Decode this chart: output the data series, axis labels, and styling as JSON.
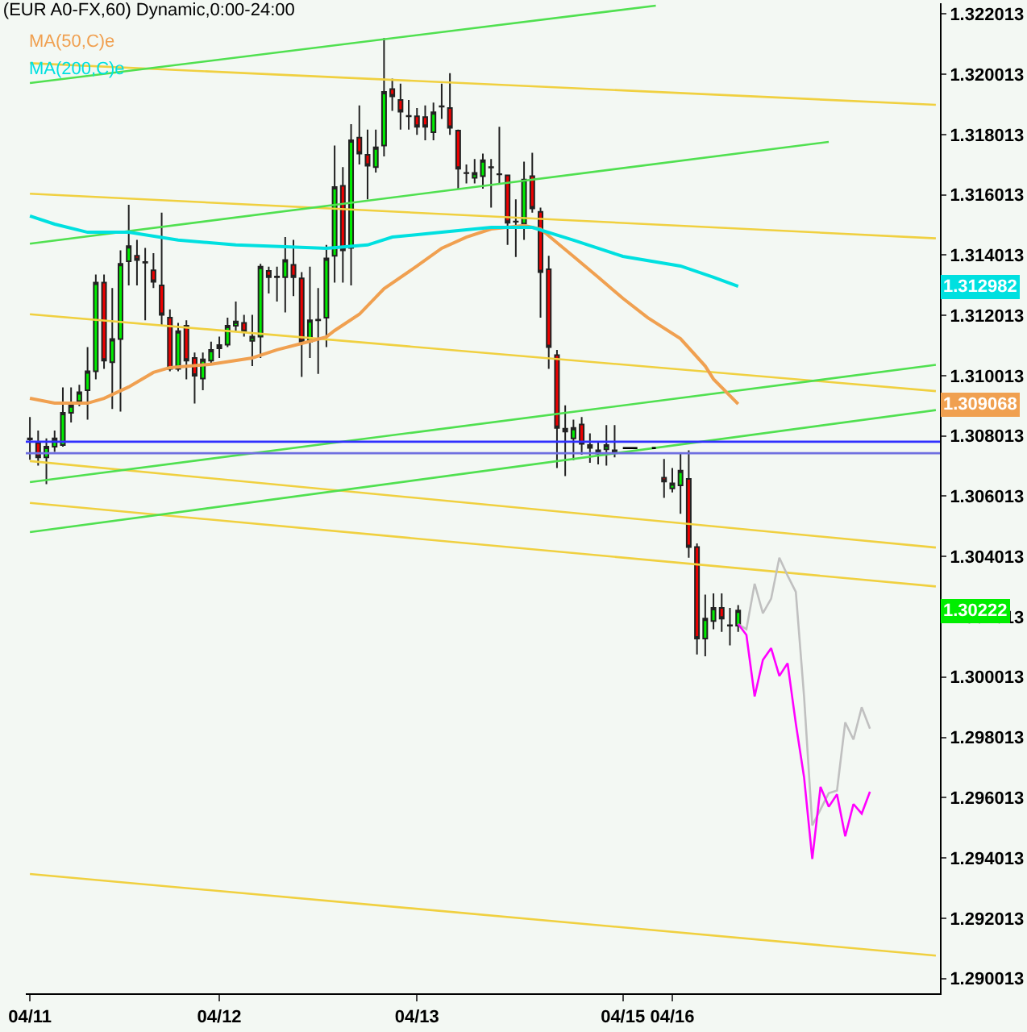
{
  "chart_data": {
    "type": "candlestick",
    "title": "(EUR A0-FX,60) Dynamic,0:00-24:00",
    "categories": [
      "04/11",
      null,
      null,
      null,
      null,
      null,
      null,
      null,
      null,
      null,
      null,
      null,
      null,
      null,
      null,
      null,
      null,
      null,
      null,
      null,
      null,
      null,
      null,
      "04/12",
      null,
      null,
      null,
      null,
      null,
      null,
      null,
      null,
      null,
      null,
      null,
      null,
      null,
      null,
      null,
      null,
      null,
      null,
      null,
      null,
      null,
      null,
      null,
      "04/13",
      null,
      null,
      null,
      null,
      null,
      null,
      null,
      null,
      null,
      null,
      null,
      null,
      null,
      null,
      null,
      null,
      null,
      null,
      null,
      null,
      null,
      null,
      null,
      null,
      "04/15",
      null,
      null,
      null,
      null,
      null,
      "04/16",
      null,
      null,
      null,
      null,
      null,
      null,
      null,
      null,
      null,
      null,
      null,
      null,
      null,
      null,
      null,
      null,
      null,
      null,
      null,
      null,
      null,
      null,
      null,
      null,
      null,
      null,
      null,
      null,
      null,
      null,
      null,
      null
    ],
    "ohlc": [
      [
        1.30793,
        1.30864,
        1.30722,
        1.3079
      ],
      [
        1.30778,
        1.30819,
        1.30703,
        1.3073
      ],
      [
        1.3073,
        1.30793,
        1.30641,
        1.30766
      ],
      [
        1.30766,
        1.30819,
        1.30748,
        1.30793
      ],
      [
        1.30771,
        1.30962,
        1.30766,
        1.30878
      ],
      [
        1.30878,
        1.30962,
        1.30846,
        1.30903
      ],
      [
        1.30917,
        1.30971,
        1.309,
        1.30946
      ],
      [
        1.30953,
        1.31096,
        1.30855,
        1.31016
      ],
      [
        1.31016,
        1.31337,
        1.30989,
        1.3131
      ],
      [
        1.3131,
        1.31337,
        1.31024,
        1.31051
      ],
      [
        1.31046,
        1.31292,
        1.30891,
        1.31123
      ],
      [
        1.31123,
        1.31417,
        1.30882,
        1.31372
      ],
      [
        1.31381,
        1.31568,
        1.31301,
        1.31431
      ],
      [
        1.31399,
        1.31452,
        1.31301,
        1.31385
      ],
      [
        1.31378,
        1.31425,
        1.31185,
        1.31376
      ],
      [
        1.31351,
        1.31408,
        1.31292,
        1.31313
      ],
      [
        1.31301,
        1.31542,
        1.31167,
        1.31203
      ],
      [
        1.31194,
        1.31221,
        1.31016,
        1.31024
      ],
      [
        1.31024,
        1.31176,
        1.31016,
        1.31149
      ],
      [
        1.31167,
        1.31185,
        1.30989,
        1.31051
      ],
      [
        1.3106,
        1.31078,
        1.30909,
        1.31001
      ],
      [
        1.30992,
        1.31078,
        1.30953,
        1.31055
      ],
      [
        1.31051,
        1.31114,
        1.31042,
        1.31087
      ],
      [
        1.31092,
        1.31131,
        1.3106,
        1.31103
      ],
      [
        1.31104,
        1.31194,
        1.31096,
        1.31167
      ],
      [
        1.31167,
        1.31247,
        1.31149,
        1.31181
      ],
      [
        1.31176,
        1.31203,
        1.31131,
        1.31146
      ],
      [
        1.31117,
        1.31203,
        1.31033,
        1.31131
      ],
      [
        1.31131,
        1.31372,
        1.3106,
        1.31363
      ],
      [
        1.31349,
        1.31363,
        1.31274,
        1.31328
      ],
      [
        1.3133,
        1.31363,
        1.31247,
        1.31328
      ],
      [
        1.31328,
        1.31461,
        1.31211,
        1.31385
      ],
      [
        1.31369,
        1.31452,
        1.31265,
        1.31328
      ],
      [
        1.31324,
        1.31345,
        1.30997,
        1.31114
      ],
      [
        1.31114,
        1.31363,
        1.3106,
        1.31185
      ],
      [
        1.31185,
        1.31292,
        1.31007,
        1.31187
      ],
      [
        1.31194,
        1.31435,
        1.31096,
        1.3139
      ],
      [
        1.31399,
        1.31765,
        1.3131,
        1.31627
      ],
      [
        1.31631,
        1.31693,
        1.3131,
        1.31417
      ],
      [
        1.31425,
        1.31836,
        1.31301,
        1.31782
      ],
      [
        1.31791,
        1.31898,
        1.31702,
        1.31738
      ],
      [
        1.31734,
        1.31818,
        1.31586,
        1.31698
      ],
      [
        1.31693,
        1.31818,
        1.31675,
        1.31759
      ],
      [
        1.31765,
        1.32121,
        1.31729,
        1.31943
      ],
      [
        1.31952,
        1.31987,
        1.3188,
        1.31928
      ],
      [
        1.31916,
        1.3197,
        1.31818,
        1.31877
      ],
      [
        1.31863,
        1.31916,
        1.31818,
        1.31862
      ],
      [
        1.31862,
        1.31889,
        1.318,
        1.31827
      ],
      [
        1.31859,
        1.31898,
        1.31782,
        1.31827
      ],
      [
        1.31809,
        1.31907,
        1.31782,
        1.31875
      ],
      [
        1.31895,
        1.3197,
        1.31853,
        1.31894
      ],
      [
        1.31889,
        1.32005,
        1.318,
        1.31824
      ],
      [
        1.31814,
        1.31818,
        1.31622,
        1.31688
      ],
      [
        1.31674,
        1.31702,
        1.31639,
        1.31673
      ],
      [
        1.31658,
        1.3172,
        1.31639,
        1.31674
      ],
      [
        1.31663,
        1.31738,
        1.31622,
        1.31716
      ],
      [
        1.31693,
        1.3172,
        1.31559,
        1.31692
      ],
      [
        1.3167,
        1.31827,
        1.31639,
        1.31669
      ],
      [
        1.31666,
        1.31666,
        1.31435,
        1.31509
      ],
      [
        1.31513,
        1.31586,
        1.31395,
        1.31512
      ],
      [
        1.31506,
        1.31711,
        1.31452,
        1.31652
      ],
      [
        1.31663,
        1.31741,
        1.31542,
        1.31556
      ],
      [
        1.31545,
        1.31559,
        1.31194,
        1.31345
      ],
      [
        1.31354,
        1.31399,
        1.31024,
        1.31096
      ],
      [
        1.31069,
        1.31087,
        1.30695,
        1.30828
      ],
      [
        1.30825,
        1.30903,
        1.30668,
        1.30816
      ],
      [
        1.30793,
        1.30855,
        1.30721,
        1.30828
      ],
      [
        1.30839,
        1.30864,
        1.30739,
        1.30775
      ],
      [
        1.30771,
        1.3081,
        1.30712,
        1.30762
      ],
      [
        1.30743,
        1.30783,
        1.30707,
        1.30754
      ],
      [
        1.30757,
        1.30837,
        1.30703,
        1.30771
      ],
      [
        1.30744,
        1.30837,
        1.3073,
        1.30754
      ],
      null,
      null,
      null,
      null,
      null,
      [
        1.30663,
        1.30725,
        1.30596,
        1.3065
      ],
      [
        1.30627,
        1.30695,
        1.30614,
        1.30644
      ],
      [
        1.30637,
        1.30743,
        1.30543,
        1.30686
      ],
      [
        1.30659,
        1.30754,
        1.30397,
        1.30433
      ],
      [
        1.30433,
        1.30445,
        1.30076,
        1.30129
      ],
      [
        1.30129,
        1.30275,
        1.3007,
        1.30195
      ],
      [
        1.30187,
        1.30279,
        1.3016,
        1.30231
      ],
      [
        1.30231,
        1.30279,
        1.30151,
        1.30195
      ],
      [
        1.30173,
        1.30231,
        1.30106,
        1.30172
      ],
      [
        1.30172,
        1.3024,
        1.30151,
        1.30222
      ],
      null,
      null,
      null,
      null,
      null,
      null,
      null,
      null,
      null,
      null,
      null,
      null,
      null,
      null,
      null,
      null,
      null,
      null,
      null,
      null,
      null,
      null,
      null,
      null
    ],
    "series": [
      {
        "type": "line",
        "color": "#f0d040",
        "values": [
          1.32038,
          null,
          null,
          null,
          null,
          null,
          null,
          null,
          null,
          null,
          null,
          null,
          null,
          null,
          null,
          null,
          null,
          null,
          null,
          null,
          null,
          null,
          null,
          null,
          null,
          null,
          null,
          null,
          null,
          null,
          null,
          null,
          null,
          null,
          null,
          null,
          null,
          null,
          null,
          null,
          null,
          null,
          null,
          null,
          null,
          null,
          null,
          null,
          null,
          null,
          null,
          null,
          null,
          null,
          null,
          null,
          null,
          null,
          null,
          null,
          null,
          null,
          null,
          null,
          null,
          null,
          null,
          null,
          null,
          null,
          null,
          null,
          null,
          null,
          null,
          null,
          null,
          null,
          null,
          null,
          null,
          null,
          null,
          null,
          null,
          null,
          null,
          null,
          null,
          null,
          null,
          null,
          null,
          null,
          null,
          null,
          null,
          null,
          null,
          null,
          null,
          null,
          null,
          null,
          null,
          null,
          null,
          null,
          null,
          null,
          1.319
        ]
      },
      {
        "type": "line",
        "color": "#f0d040",
        "values": [
          1.31605,
          null,
          null,
          null,
          null,
          null,
          null,
          null,
          null,
          null,
          null,
          null,
          null,
          null,
          null,
          null,
          null,
          null,
          null,
          null,
          null,
          null,
          null,
          null,
          null,
          null,
          null,
          null,
          null,
          null,
          null,
          null,
          null,
          null,
          null,
          null,
          null,
          null,
          null,
          null,
          null,
          null,
          null,
          null,
          null,
          null,
          null,
          null,
          null,
          null,
          null,
          null,
          null,
          null,
          null,
          null,
          null,
          null,
          null,
          null,
          null,
          null,
          null,
          null,
          null,
          null,
          null,
          null,
          null,
          null,
          null,
          null,
          null,
          null,
          null,
          null,
          null,
          null,
          null,
          null,
          null,
          null,
          null,
          null,
          null,
          null,
          null,
          null,
          null,
          null,
          null,
          null,
          null,
          null,
          null,
          null,
          null,
          null,
          null,
          null,
          null,
          null,
          null,
          null,
          null,
          null,
          null,
          null,
          null,
          null,
          1.31457
        ]
      },
      {
        "type": "line",
        "color": "#f0d040",
        "values": [
          1.31205,
          null,
          null,
          null,
          null,
          null,
          null,
          null,
          null,
          null,
          null,
          null,
          null,
          null,
          null,
          null,
          null,
          null,
          null,
          null,
          null,
          null,
          null,
          null,
          null,
          null,
          null,
          null,
          null,
          null,
          null,
          null,
          null,
          null,
          null,
          null,
          null,
          null,
          null,
          null,
          null,
          null,
          null,
          null,
          null,
          null,
          null,
          null,
          null,
          null,
          null,
          null,
          null,
          null,
          null,
          null,
          null,
          null,
          null,
          null,
          null,
          null,
          null,
          null,
          null,
          null,
          null,
          null,
          null,
          null,
          null,
          null,
          null,
          null,
          null,
          null,
          null,
          null,
          null,
          null,
          null,
          null,
          null,
          null,
          null,
          null,
          null,
          null,
          null,
          null,
          null,
          null,
          null,
          null,
          null,
          null,
          null,
          null,
          null,
          null,
          null,
          null,
          null,
          null,
          null,
          null,
          null,
          null,
          null,
          null,
          1.3095
        ]
      },
      {
        "type": "line",
        "color": "#f0d040",
        "values": [
          1.30718,
          null,
          null,
          null,
          null,
          null,
          null,
          null,
          null,
          null,
          null,
          null,
          null,
          null,
          null,
          null,
          null,
          null,
          null,
          null,
          null,
          null,
          null,
          null,
          null,
          null,
          null,
          null,
          null,
          null,
          null,
          null,
          null,
          null,
          null,
          null,
          null,
          null,
          null,
          null,
          null,
          null,
          null,
          null,
          null,
          null,
          null,
          null,
          null,
          null,
          null,
          null,
          null,
          null,
          null,
          null,
          null,
          null,
          null,
          null,
          null,
          null,
          null,
          null,
          null,
          null,
          null,
          null,
          null,
          null,
          null,
          null,
          null,
          null,
          null,
          null,
          null,
          null,
          null,
          null,
          null,
          null,
          null,
          null,
          null,
          null,
          null,
          null,
          null,
          null,
          null,
          null,
          null,
          null,
          null,
          null,
          null,
          null,
          null,
          null,
          null,
          null,
          null,
          null,
          null,
          null,
          null,
          null,
          null,
          null,
          1.30431
        ]
      },
      {
        "type": "line",
        "color": "#f0d040",
        "values": [
          1.30579,
          null,
          null,
          null,
          null,
          null,
          null,
          null,
          null,
          null,
          null,
          null,
          null,
          null,
          null,
          null,
          null,
          null,
          null,
          null,
          null,
          null,
          null,
          null,
          null,
          null,
          null,
          null,
          null,
          null,
          null,
          null,
          null,
          null,
          null,
          null,
          null,
          null,
          null,
          null,
          null,
          null,
          null,
          null,
          null,
          null,
          null,
          null,
          null,
          null,
          null,
          null,
          null,
          null,
          null,
          null,
          null,
          null,
          null,
          null,
          null,
          null,
          null,
          null,
          null,
          null,
          null,
          null,
          null,
          null,
          null,
          null,
          null,
          null,
          null,
          null,
          null,
          null,
          null,
          null,
          null,
          null,
          null,
          null,
          null,
          null,
          null,
          null,
          null,
          null,
          null,
          null,
          null,
          null,
          null,
          null,
          null,
          null,
          null,
          null,
          null,
          null,
          null,
          null,
          null,
          null,
          null,
          null,
          null,
          null,
          1.30302
        ]
      },
      {
        "type": "line",
        "color": "#f0d040",
        "values": [
          1.29348,
          null,
          null,
          null,
          null,
          null,
          null,
          null,
          null,
          null,
          null,
          null,
          null,
          null,
          null,
          null,
          null,
          null,
          null,
          null,
          null,
          null,
          null,
          null,
          null,
          null,
          null,
          null,
          null,
          null,
          null,
          null,
          null,
          null,
          null,
          null,
          null,
          null,
          null,
          null,
          null,
          null,
          null,
          null,
          null,
          null,
          null,
          null,
          null,
          null,
          null,
          null,
          null,
          null,
          null,
          null,
          null,
          null,
          null,
          null,
          null,
          null,
          null,
          null,
          null,
          null,
          null,
          null,
          null,
          null,
          null,
          null,
          null,
          null,
          null,
          null,
          null,
          null,
          null,
          null,
          null,
          null,
          null,
          null,
          null,
          null,
          null,
          null,
          null,
          null,
          null,
          null,
          null,
          null,
          null,
          null,
          null,
          null,
          null,
          null,
          null,
          null,
          null,
          null,
          null,
          null,
          null,
          null,
          null,
          null,
          1.29077
        ]
      },
      {
        "type": "line",
        "color": "#50e050",
        "values": [
          1.31972,
          null,
          null,
          null,
          null,
          null,
          null,
          null,
          null,
          null,
          null,
          null,
          null,
          null,
          null,
          null,
          null,
          null,
          null,
          null,
          null,
          null,
          null,
          null,
          null,
          null,
          null,
          null,
          null,
          null,
          null,
          null,
          null,
          null,
          null,
          null,
          null,
          null,
          null,
          null,
          null,
          null,
          null,
          null,
          null,
          null,
          null,
          null,
          null,
          null,
          null,
          null,
          null,
          null,
          null,
          null,
          null,
          null,
          null,
          null,
          null,
          null,
          null,
          null,
          null,
          null,
          null,
          null,
          null,
          null,
          null,
          null,
          null,
          null,
          null,
          null,
          1.32229,
          null,
          null,
          null,
          null,
          null,
          null,
          null,
          null,
          null,
          null,
          null,
          null,
          null,
          null,
          null,
          null,
          null,
          null,
          null,
          null,
          null,
          null,
          null,
          null,
          null,
          null,
          null,
          null,
          null,
          null,
          null,
          null,
          null,
          null
        ]
      },
      {
        "type": "line",
        "color": "#50e050",
        "values": [
          1.31439,
          null,
          null,
          null,
          null,
          null,
          null,
          null,
          null,
          null,
          null,
          null,
          null,
          null,
          null,
          null,
          null,
          null,
          null,
          null,
          null,
          null,
          null,
          null,
          null,
          null,
          null,
          null,
          null,
          null,
          null,
          null,
          null,
          null,
          null,
          null,
          null,
          null,
          null,
          null,
          null,
          null,
          null,
          null,
          null,
          null,
          null,
          null,
          null,
          null,
          null,
          null,
          null,
          null,
          null,
          null,
          null,
          null,
          null,
          null,
          null,
          null,
          null,
          null,
          null,
          null,
          null,
          null,
          null,
          null,
          null,
          null,
          null,
          null,
          null,
          null,
          null,
          null,
          null,
          null,
          null,
          null,
          null,
          null,
          null,
          null,
          null,
          null,
          null,
          null,
          null,
          null,
          null,
          null,
          null,
          null,
          null,
          1.31777,
          null,
          null,
          null,
          null,
          null,
          null,
          null,
          null,
          null,
          null,
          null,
          null,
          null
        ]
      },
      {
        "type": "line",
        "color": "#50e050",
        "values": [
          1.30648,
          null,
          null,
          null,
          null,
          null,
          null,
          null,
          null,
          null,
          null,
          null,
          null,
          null,
          null,
          null,
          null,
          null,
          null,
          null,
          null,
          null,
          null,
          null,
          null,
          null,
          null,
          null,
          null,
          null,
          null,
          null,
          null,
          null,
          null,
          null,
          null,
          null,
          null,
          null,
          null,
          null,
          null,
          null,
          null,
          null,
          null,
          null,
          null,
          null,
          null,
          null,
          null,
          null,
          null,
          null,
          null,
          null,
          null,
          null,
          null,
          null,
          null,
          null,
          null,
          null,
          null,
          null,
          null,
          null,
          null,
          null,
          null,
          null,
          null,
          null,
          null,
          null,
          null,
          null,
          null,
          null,
          null,
          null,
          null,
          null,
          null,
          null,
          null,
          null,
          null,
          null,
          null,
          null,
          null,
          null,
          null,
          null,
          null,
          null,
          null,
          null,
          null,
          null,
          null,
          null,
          null,
          null,
          null,
          null,
          1.31037
        ]
      },
      {
        "type": "line",
        "color": "#50e050",
        "values": [
          1.30482,
          null,
          null,
          null,
          null,
          null,
          null,
          null,
          null,
          null,
          null,
          null,
          null,
          null,
          null,
          null,
          null,
          null,
          null,
          null,
          null,
          null,
          null,
          null,
          null,
          null,
          null,
          null,
          null,
          null,
          null,
          null,
          null,
          null,
          null,
          null,
          null,
          null,
          null,
          null,
          null,
          null,
          null,
          null,
          null,
          null,
          null,
          null,
          null,
          null,
          null,
          null,
          null,
          null,
          null,
          null,
          null,
          null,
          null,
          null,
          null,
          null,
          null,
          null,
          null,
          null,
          null,
          null,
          null,
          null,
          null,
          null,
          null,
          null,
          null,
          null,
          null,
          null,
          null,
          null,
          null,
          null,
          null,
          null,
          null,
          null,
          null,
          null,
          null,
          null,
          null,
          null,
          null,
          null,
          null,
          null,
          null,
          null,
          null,
          null,
          null,
          null,
          null,
          null,
          null,
          null,
          null,
          null,
          null,
          null,
          1.30887
        ]
      },
      {
        "type": "line",
        "color": "#000000",
        "line_style": "dashed",
        "values": [
          null,
          null,
          null,
          null,
          null,
          null,
          null,
          null,
          null,
          null,
          null,
          null,
          null,
          null,
          null,
          null,
          null,
          null,
          null,
          null,
          null,
          null,
          null,
          null,
          null,
          null,
          null,
          null,
          null,
          null,
          null,
          null,
          null,
          null,
          null,
          null,
          null,
          null,
          null,
          null,
          null,
          null,
          null,
          null,
          null,
          null,
          null,
          null,
          null,
          null,
          null,
          null,
          null,
          null,
          null,
          null,
          null,
          null,
          null,
          null,
          null,
          null,
          null,
          null,
          null,
          null,
          null,
          null,
          null,
          null,
          null,
          null,
          1.30761,
          1.30761,
          1.30761,
          1.30761,
          1.30761,
          null,
          null,
          null,
          null,
          null,
          null,
          null,
          null,
          null,
          null,
          null,
          null,
          null,
          null,
          null,
          null,
          null,
          null,
          null,
          null,
          null,
          null,
          null,
          null,
          null,
          null,
          null,
          null,
          null,
          null,
          null,
          null,
          null,
          null
        ]
      },
      {
        "type": "line",
        "name": "MA(50,C)e",
        "color": "#f0a050",
        "values": [
          1.30926,
          null,
          null,
          1.3091,
          null,
          null,
          null,
          1.3091,
          null,
          1.30926,
          null,
          null,
          1.30964,
          null,
          null,
          1.31012,
          null,
          1.31028,
          null,
          null,
          null,
          null,
          1.31039,
          null,
          null,
          null,
          null,
          1.3106,
          null,
          null,
          1.31087,
          null,
          null,
          1.31108,
          null,
          null,
          1.3113,
          1.31151,
          null,
          null,
          1.31205,
          null,
          null,
          1.3129,
          null,
          null,
          null,
          1.31365,
          null,
          null,
          1.31424,
          null,
          null,
          1.31461,
          null,
          null,
          1.31488,
          null,
          null,
          null,
          1.31499,
          null,
          1.31488,
          null,
          null,
          null,
          1.31397,
          null,
          null,
          1.31328,
          null,
          null,
          1.31258,
          null,
          null,
          1.31194,
          null,
          null,
          null,
          1.31124,
          null,
          null,
          1.31033,
          1.3099,
          null,
          null,
          1.30907,
          null,
          null,
          null,
          null,
          null,
          null,
          null,
          null,
          null,
          null,
          null,
          null,
          null,
          null,
          null,
          null,
          null,
          null,
          null,
          null,
          null,
          null,
          null,
          null
        ]
      },
      {
        "type": "line",
        "name": "MA(200,C)e",
        "color": "#00e0e0",
        "values": [
          1.31531,
          null,
          null,
          1.31504,
          null,
          null,
          null,
          1.31477,
          null,
          null,
          null,
          null,
          1.31477,
          null,
          null,
          null,
          null,
          null,
          1.31451,
          null,
          null,
          null,
          null,
          null,
          null,
          1.31435,
          null,
          null,
          null,
          null,
          null,
          1.31429,
          null,
          null,
          null,
          null,
          1.31424,
          null,
          null,
          null,
          null,
          1.31435,
          null,
          null,
          1.31461,
          null,
          null,
          null,
          null,
          null,
          1.31477,
          null,
          null,
          null,
          null,
          null,
          1.31493,
          null,
          null,
          null,
          null,
          1.31493,
          null,
          null,
          null,
          null,
          1.31451,
          null,
          null,
          null,
          null,
          null,
          1.31397,
          null,
          null,
          null,
          null,
          null,
          null,
          1.31365,
          null,
          null,
          null,
          1.31328,
          null,
          null,
          1.31298,
          null,
          null,
          null,
          null,
          null,
          null,
          null,
          null,
          null,
          null,
          null,
          null,
          null,
          null,
          null,
          null,
          null,
          null,
          null,
          null,
          null,
          null,
          null,
          null
        ]
      },
      {
        "type": "line",
        "color": "#c0c0c0",
        "values": [
          null,
          null,
          null,
          null,
          null,
          null,
          null,
          null,
          null,
          null,
          null,
          null,
          null,
          null,
          null,
          null,
          null,
          null,
          null,
          null,
          null,
          null,
          null,
          null,
          null,
          null,
          null,
          null,
          null,
          null,
          null,
          null,
          null,
          null,
          null,
          null,
          null,
          null,
          null,
          null,
          null,
          null,
          null,
          null,
          null,
          null,
          null,
          null,
          null,
          null,
          null,
          null,
          null,
          null,
          null,
          null,
          null,
          null,
          null,
          null,
          null,
          null,
          null,
          null,
          null,
          null,
          null,
          null,
          null,
          null,
          null,
          null,
          null,
          null,
          null,
          null,
          null,
          null,
          null,
          null,
          null,
          null,
          null,
          null,
          null,
          null,
          1.30177,
          1.3016,
          1.30311,
          1.30213,
          1.30261,
          1.30397,
          1.30338,
          1.30284,
          1.29937,
          1.29509,
          1.29562,
          1.29616,
          1.29625,
          1.29851,
          1.29794,
          1.29901,
          1.2983,
          null,
          null,
          null,
          null,
          null,
          null,
          null,
          null
        ]
      },
      {
        "type": "line",
        "color": "#ff00ff",
        "values": [
          null,
          null,
          null,
          null,
          null,
          null,
          null,
          null,
          null,
          null,
          null,
          null,
          null,
          null,
          null,
          null,
          null,
          null,
          null,
          null,
          null,
          null,
          null,
          null,
          null,
          null,
          null,
          null,
          null,
          null,
          null,
          null,
          null,
          null,
          null,
          null,
          null,
          null,
          null,
          null,
          null,
          null,
          null,
          null,
          null,
          null,
          null,
          null,
          null,
          null,
          null,
          null,
          null,
          null,
          null,
          null,
          null,
          null,
          null,
          null,
          null,
          null,
          null,
          null,
          null,
          null,
          null,
          null,
          null,
          null,
          null,
          null,
          null,
          null,
          null,
          null,
          null,
          null,
          null,
          null,
          null,
          null,
          null,
          null,
          null,
          null,
          1.30177,
          1.30141,
          1.29937,
          1.30058,
          1.30097,
          1.30005,
          1.30047,
          1.29847,
          1.29669,
          1.29398,
          1.29637,
          1.29571,
          1.29612,
          1.29473,
          1.2958,
          1.29548,
          1.29621,
          null,
          null,
          null,
          null,
          null,
          null,
          null,
          null
        ]
      }
    ],
    "ref_lines": [
      {
        "axis": "y",
        "value": 1.30782,
        "color": "#3030ff"
      },
      {
        "axis": "y",
        "value": 1.30744,
        "color": "#7070e0"
      }
    ],
    "annotations": [
      "1.309068",
      "1.312982",
      "1.30222"
    ],
    "ylim": [
      1.28952,
      1.32237
    ],
    "yticks": [
      1.290013,
      1.292013,
      1.294013,
      1.296013,
      1.298013,
      1.300013,
      1.302013,
      1.304013,
      1.306013,
      1.308013,
      1.310013,
      1.312013,
      1.314013,
      1.316013,
      1.318013,
      1.320013,
      1.322013
    ]
  }
}
